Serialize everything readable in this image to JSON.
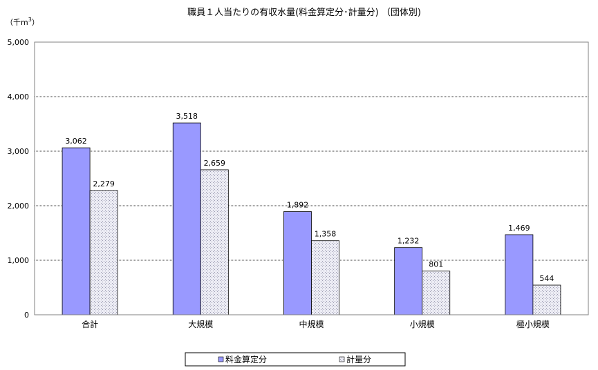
{
  "chart_data": {
    "type": "bar",
    "title": "職員１人当たりの有収水量(料金算定分･計量分) （団体別)",
    "ylabel": "（千m3）",
    "ylabel_main": "（千m",
    "ylabel_sup": "3",
    "ylabel_close": "）",
    "ylim": [
      0,
      5000
    ],
    "yticks": [
      0,
      1000,
      2000,
      3000,
      4000,
      5000
    ],
    "ytick_labels": [
      "0",
      "1,000",
      "2,000",
      "3,000",
      "4,000",
      "5,000"
    ],
    "grid": true,
    "legend_position": "bottom",
    "categories": [
      "合計",
      "大規模",
      "中規模",
      "小規模",
      "極小規模"
    ],
    "series": [
      {
        "name": "料金算定分",
        "values": [
          3062,
          3518,
          1892,
          1232,
          1469
        ],
        "labels": [
          "3,062",
          "3,518",
          "1,892",
          "1,232",
          "1,469"
        ],
        "color": "#9999ff"
      },
      {
        "name": "計量分",
        "values": [
          2279,
          2659,
          1358,
          801,
          544
        ],
        "labels": [
          "2,279",
          "2,659",
          "1,358",
          "801",
          "544"
        ],
        "color": "#d9d9e6"
      }
    ]
  }
}
